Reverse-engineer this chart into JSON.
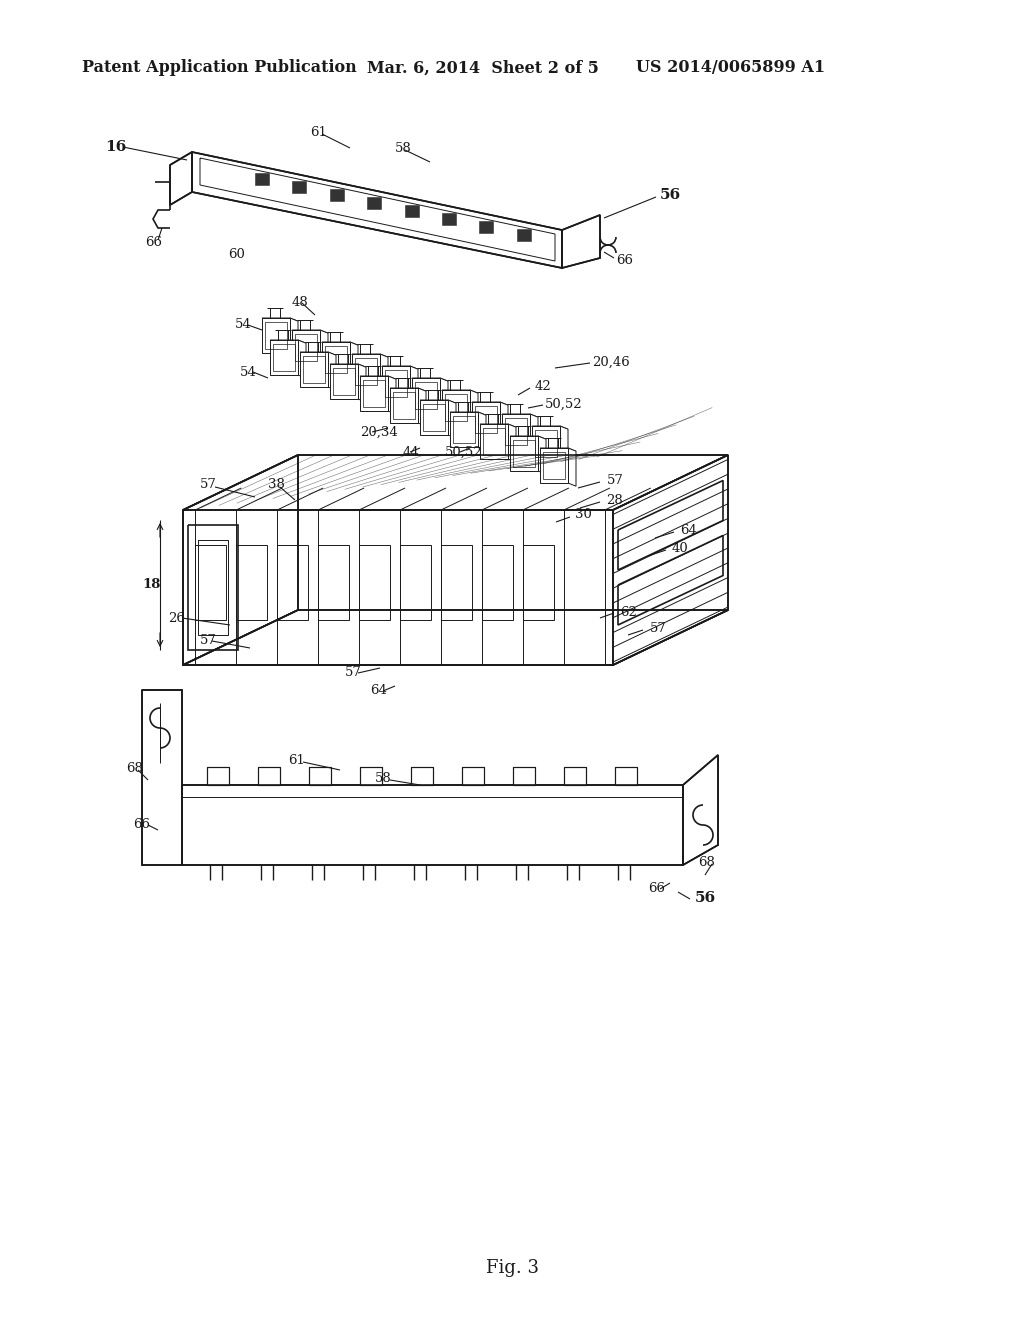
{
  "header_left": "Patent Application Publication",
  "header_center": "Mar. 6, 2014  Sheet 2 of 5",
  "header_right": "US 2014/0065899 A1",
  "figure_label": "Fig. 3",
  "bg_color": "#ffffff",
  "lc": "#1a1a1a",
  "lw": 1.2,
  "thin": 0.7,
  "header_fontsize": 11.5,
  "fig_fontsize": 13,
  "ann_fontsize": 9.5,
  "label_fontsize": 9.5
}
